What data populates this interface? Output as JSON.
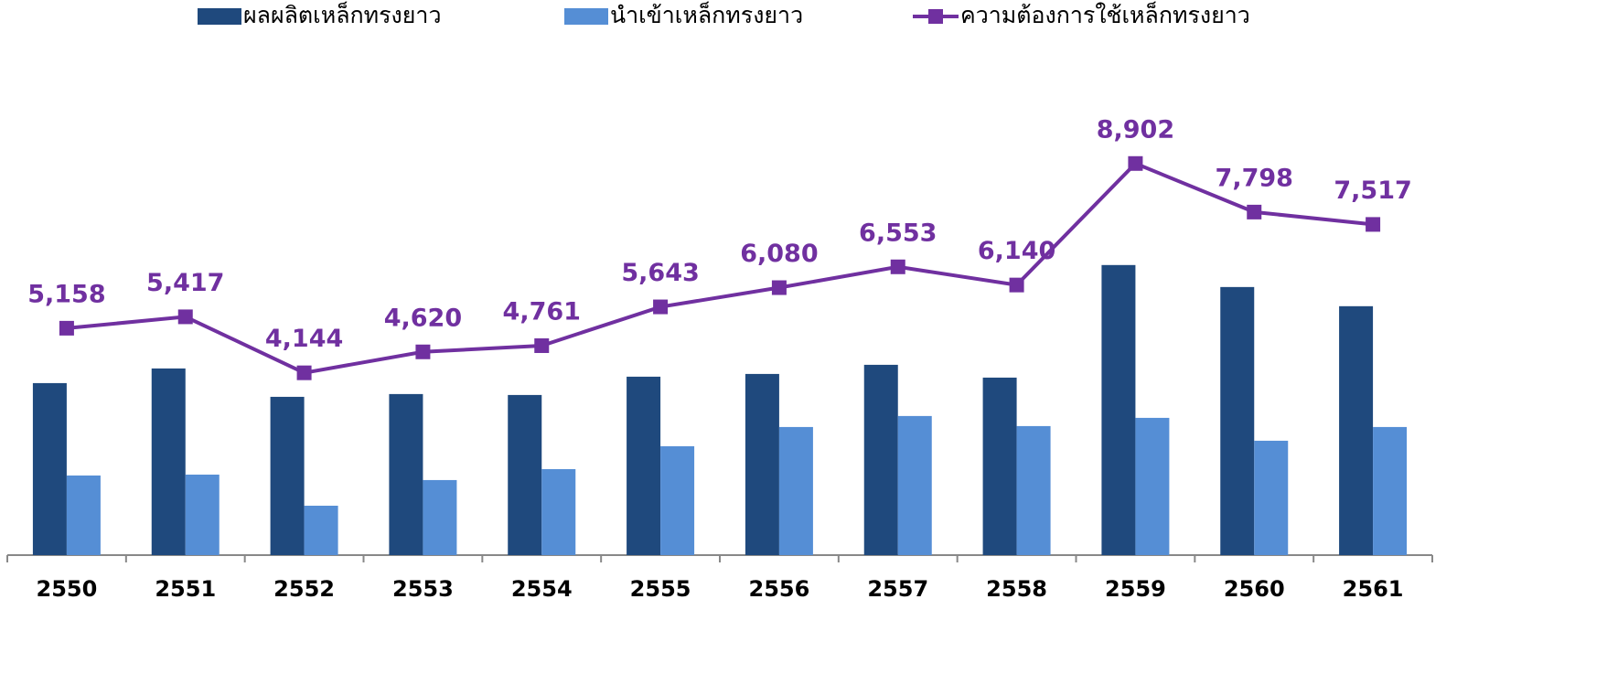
{
  "chart_data": {
    "type": "bar_line",
    "categories": [
      "2550",
      "2551",
      "2552",
      "2553",
      "2554",
      "2555",
      "2556",
      "2557",
      "2558",
      "2559",
      "2560",
      "2561"
    ],
    "series": [
      {
        "name": "ผลผลิตเหล็กทรงยาว",
        "type": "bar",
        "color": "#1f497d",
        "values": [
          3910,
          4243,
          3598,
          3661,
          3640,
          4056,
          4118,
          4326,
          4035,
          6594,
          6094,
          5658
        ]
      },
      {
        "name": "นำเข้าเหล็กทรงยาว",
        "type": "bar",
        "color": "#558ed5",
        "values": [
          1810,
          1830,
          1123,
          1706,
          1955,
          2475,
          2912,
          3162,
          2933,
          3120,
          2600,
          2912
        ]
      },
      {
        "name": "ความต้องการใช้เหล็กทรงยาว",
        "type": "line",
        "color": "#7030a0",
        "values": [
          5158,
          5417,
          4144,
          4620,
          4761,
          5643,
          6080,
          6553,
          6140,
          8902,
          7798,
          7517
        ],
        "value_labels": [
          "5,158",
          "5,417",
          "4,144",
          "4,620",
          "4,761",
          "5,643",
          "6,080",
          "6,553",
          "6,140",
          "8,902",
          "7,798",
          "7,517"
        ]
      }
    ],
    "ylim": [
      0,
      11600
    ],
    "legend": "top"
  }
}
